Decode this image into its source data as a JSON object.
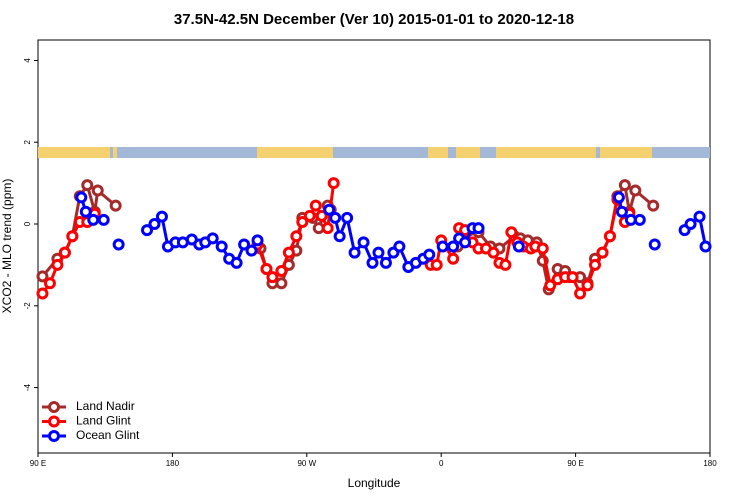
{
  "chart_data": {
    "type": "line",
    "title": "37.5N-42.5N December (Ver 10)   2015-01-01 to 2020-12-18",
    "xlabel": "Longitude",
    "ylabel": "XCO2 - MLO trend (ppm)",
    "xlim": [
      90,
      540
    ],
    "ylim": [
      -5.6,
      4.5
    ],
    "xticks": [
      {
        "value": 90,
        "label": "90 E"
      },
      180,
      {
        "value": 270,
        "label": "90 W"
      },
      {
        "value": 360,
        "label": "0"
      },
      {
        "value": 450,
        "label": "90 E"
      },
      {
        "value": 540,
        "label": "180"
      }
    ],
    "yticks": [
      4,
      2,
      0,
      -2,
      -4
    ],
    "legend": "bottom-left",
    "series": [
      {
        "name": "Land Nadir",
        "color": "#a52a2a",
        "x": [
          93,
          103,
          108,
          113,
          118,
          123,
          128,
          130,
          142,
          190,
          239,
          243,
          247,
          253,
          258,
          263,
          267,
          274,
          278,
          284,
          286,
          330,
          371,
          379,
          385,
          393,
          399,
          409,
          413,
          418,
          424,
          428,
          432,
          438,
          443,
          446,
          453,
          458,
          463,
          468,
          473,
          478,
          483,
          486,
          490,
          502
        ],
        "values": [
          -1.28,
          -0.85,
          -0.7,
          -0.3,
          0.68,
          0.95,
          0.3,
          0.82,
          0.45,
          null,
          -0.6,
          -1.1,
          -1.45,
          -1.45,
          -1.0,
          -0.65,
          0.15,
          0.15,
          -0.1,
          0.45,
          0.35,
          null,
          -0.55,
          -0.15,
          -0.2,
          -0.55,
          -0.6,
          -0.3,
          -0.35,
          -0.4,
          -0.45,
          -0.9,
          -1.6,
          -1.1,
          -1.15,
          -1.3,
          -1.3,
          -1.45,
          -0.85,
          -0.7,
          -0.3,
          0.68,
          0.95,
          0.3,
          0.82,
          0.45
        ]
      },
      {
        "name": "Land Glint",
        "color": "#ff0000",
        "x": [
          93,
          98,
          103,
          108,
          113,
          118,
          123,
          128,
          180,
          237,
          243,
          247,
          253,
          258,
          263,
          267,
          272,
          276,
          280,
          284,
          288,
          320,
          353,
          357,
          360,
          368,
          372,
          376,
          381,
          385,
          390,
          395,
          399,
          403,
          407,
          411,
          415,
          420,
          423,
          428,
          433,
          438,
          443,
          448,
          453,
          458,
          463,
          468,
          473,
          478,
          483,
          486
        ],
        "values": [
          -1.7,
          -1.45,
          -1.0,
          -0.7,
          -0.3,
          0.05,
          0.05,
          0.25,
          null,
          -0.5,
          -1.1,
          -1.3,
          -1.15,
          -0.7,
          -0.3,
          0.05,
          0.2,
          0.45,
          0.2,
          -0.1,
          1.0,
          null,
          -1.0,
          -1.0,
          -0.4,
          -0.85,
          -0.1,
          -0.15,
          -0.45,
          -0.6,
          -0.6,
          -0.7,
          -0.95,
          -1.0,
          -0.2,
          -0.45,
          -0.55,
          -0.6,
          -0.55,
          -0.6,
          -1.5,
          -1.35,
          -1.3,
          -1.3,
          -1.7,
          -1.5,
          -1.0,
          -0.7,
          -0.3,
          0.6,
          0.05,
          0.25
        ]
      },
      {
        "name": "Ocean Glint",
        "color": "#0000ff",
        "x": [
          119,
          122,
          127,
          134,
          139,
          144,
          153,
          163,
          168,
          173,
          177,
          182,
          187,
          193,
          198,
          202,
          207,
          213,
          218,
          223,
          228,
          233,
          237,
          260,
          285,
          289,
          292,
          297,
          302,
          308,
          314,
          318,
          323,
          328,
          332,
          338,
          343,
          348,
          352,
          356,
          361,
          368,
          372,
          376,
          381,
          385,
          398,
          412,
          440,
          479,
          481,
          487,
          493,
          498,
          503,
          513,
          523,
          527,
          533,
          537
        ],
        "values": [
          0.65,
          0.3,
          0.1,
          0.1,
          null,
          -0.5,
          null,
          -0.15,
          0.0,
          0.18,
          -0.55,
          -0.45,
          -0.45,
          -0.38,
          -0.5,
          -0.45,
          -0.35,
          -0.55,
          -0.85,
          -0.95,
          -0.5,
          -0.65,
          -0.4,
          null,
          0.35,
          0.15,
          -0.3,
          0.15,
          -0.7,
          -0.45,
          -0.95,
          -0.7,
          -0.95,
          -0.7,
          -0.55,
          -1.05,
          -0.95,
          -0.85,
          -0.75,
          null,
          -0.55,
          -0.55,
          -0.35,
          -0.45,
          -0.1,
          -0.1,
          null,
          -0.55,
          null,
          0.65,
          0.3,
          0.1,
          0.1,
          null,
          -0.5,
          null,
          -0.15,
          0.0,
          0.18,
          -0.55
        ]
      }
    ]
  }
}
